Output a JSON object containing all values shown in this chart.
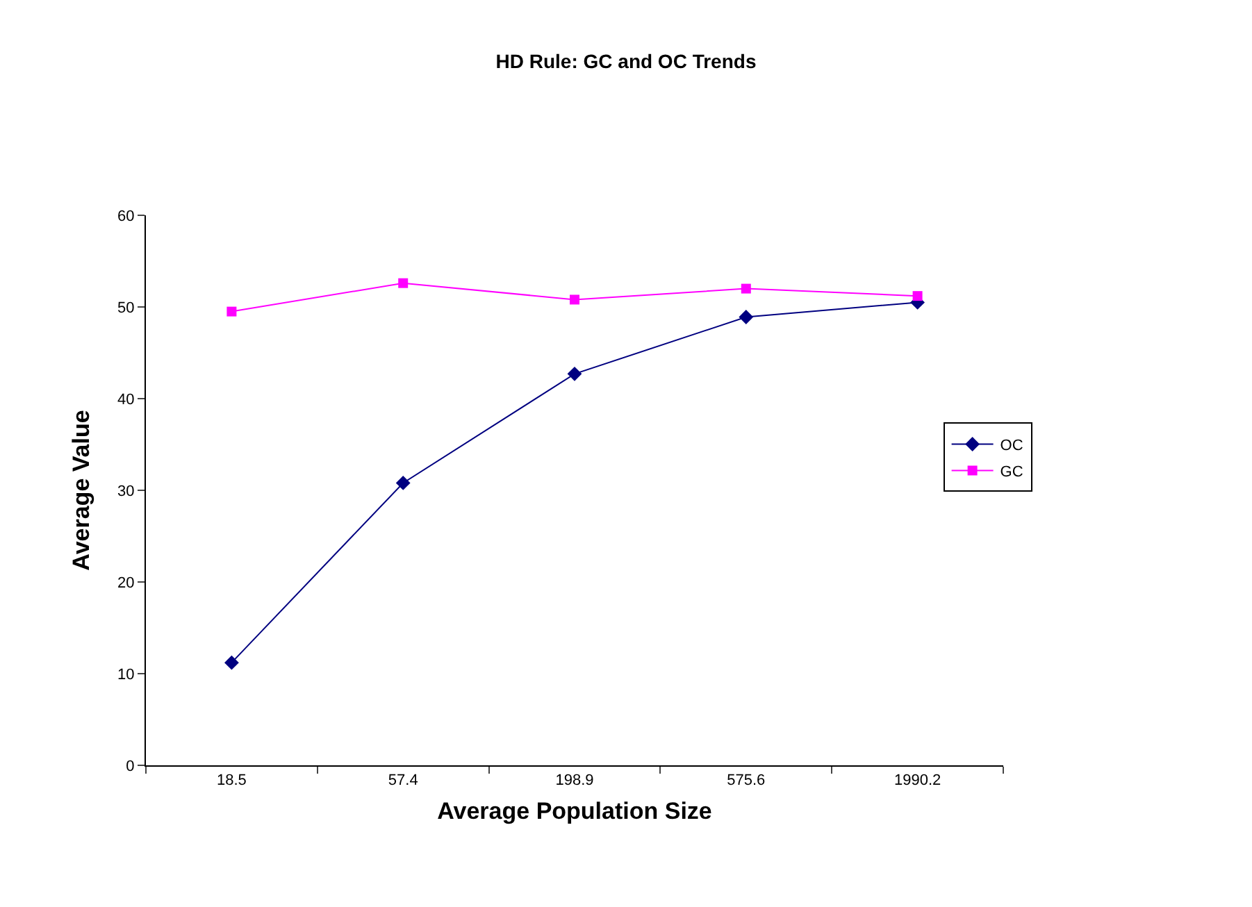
{
  "chart_data": {
    "type": "line",
    "title": "HD Rule: GC and OC Trends",
    "xlabel": "Average Population Size",
    "ylabel": "Average Value",
    "categories": [
      "18.5",
      "57.4",
      "198.9",
      "575.6",
      "1990.2"
    ],
    "series": [
      {
        "name": "OC",
        "color": "#000080",
        "marker": "diamond",
        "values": [
          11.2,
          30.8,
          42.7,
          48.9,
          50.5
        ]
      },
      {
        "name": "GC",
        "color": "#ff00ff",
        "marker": "square",
        "values": [
          49.5,
          52.6,
          50.8,
          52.0,
          51.2
        ]
      }
    ],
    "ylim": [
      0,
      60
    ],
    "yticks": [
      0,
      10,
      20,
      30,
      40,
      50,
      60
    ],
    "grid": false,
    "legend": "right",
    "line_style": "solid"
  }
}
